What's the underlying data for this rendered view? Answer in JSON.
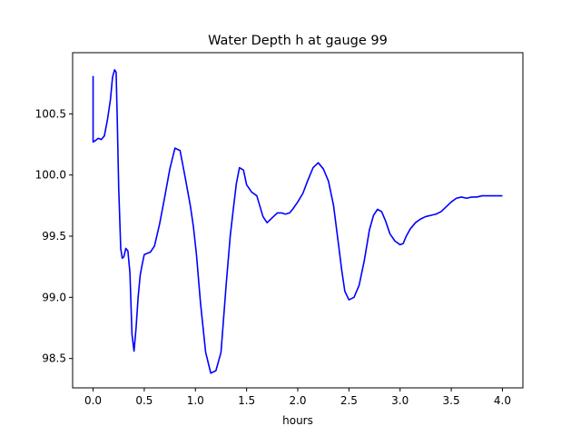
{
  "chart_data": {
    "type": "line",
    "title": "Water Depth h at gauge 99",
    "xlabel": "hours",
    "ylabel": "",
    "xlim": [
      -0.2,
      4.2
    ],
    "ylim": [
      98.26,
      101.0
    ],
    "xticks": [
      0.0,
      0.5,
      1.0,
      1.5,
      2.0,
      2.5,
      3.0,
      3.5,
      4.0
    ],
    "xtick_labels": [
      "0.0",
      "0.5",
      "1.0",
      "1.5",
      "2.0",
      "2.5",
      "3.0",
      "3.5",
      "4.0"
    ],
    "yticks": [
      98.5,
      99.0,
      99.5,
      100.0,
      100.5
    ],
    "ytick_labels": [
      "98.5",
      "99.0",
      "99.5",
      "100.0",
      "100.5"
    ],
    "grid": false,
    "line_color": "#0000ff",
    "series": [
      {
        "x": [
          0.0,
          0.0,
          0.0,
          0.02,
          0.05,
          0.08,
          0.11,
          0.14,
          0.17,
          0.19,
          0.21,
          0.225,
          0.235,
          0.25,
          0.27,
          0.285,
          0.3,
          0.32,
          0.34,
          0.36,
          0.38,
          0.4,
          0.42,
          0.44,
          0.46,
          0.48,
          0.5,
          0.53,
          0.56,
          0.6,
          0.65,
          0.7,
          0.75,
          0.8,
          0.85,
          0.9,
          0.95,
          0.98,
          1.01,
          1.05,
          1.1,
          1.15,
          1.2,
          1.25,
          1.3,
          1.34,
          1.37,
          1.4,
          1.43,
          1.47,
          1.5,
          1.55,
          1.6,
          1.66,
          1.7,
          1.75,
          1.8,
          1.84,
          1.88,
          1.92,
          1.95,
          2.0,
          2.05,
          2.1,
          2.15,
          2.2,
          2.25,
          2.3,
          2.35,
          2.4,
          2.43,
          2.46,
          2.5,
          2.55,
          2.6,
          2.65,
          2.7,
          2.74,
          2.78,
          2.82,
          2.86,
          2.9,
          2.95,
          3.0,
          3.03,
          3.06,
          3.1,
          3.15,
          3.2,
          3.25,
          3.3,
          3.35,
          3.4,
          3.45,
          3.5,
          3.55,
          3.6,
          3.65,
          3.7,
          3.75,
          3.8,
          3.85,
          3.9,
          3.95,
          4.0
        ],
        "y": [
          100.81,
          100.27,
          100.27,
          100.28,
          100.3,
          100.29,
          100.32,
          100.45,
          100.62,
          100.8,
          100.86,
          100.84,
          100.5,
          99.9,
          99.4,
          99.32,
          99.33,
          99.4,
          99.38,
          99.2,
          98.7,
          98.56,
          98.75,
          99.0,
          99.18,
          99.27,
          99.35,
          99.36,
          99.37,
          99.42,
          99.6,
          99.82,
          100.05,
          100.22,
          100.2,
          99.98,
          99.75,
          99.58,
          99.35,
          98.95,
          98.55,
          98.38,
          98.4,
          98.55,
          99.1,
          99.5,
          99.72,
          99.93,
          100.06,
          100.04,
          99.92,
          99.86,
          99.83,
          99.66,
          99.61,
          99.65,
          99.69,
          99.69,
          99.68,
          99.69,
          99.72,
          99.78,
          99.85,
          99.96,
          100.06,
          100.1,
          100.05,
          99.95,
          99.75,
          99.42,
          99.22,
          99.05,
          98.98,
          99.0,
          99.1,
          99.3,
          99.55,
          99.67,
          99.72,
          99.7,
          99.62,
          99.52,
          99.46,
          99.43,
          99.44,
          99.5,
          99.56,
          99.61,
          99.64,
          99.66,
          99.67,
          99.68,
          99.7,
          99.74,
          99.78,
          99.81,
          99.82,
          99.81,
          99.82,
          99.82,
          99.83,
          99.83,
          99.83,
          99.83,
          99.83
        ]
      }
    ]
  }
}
